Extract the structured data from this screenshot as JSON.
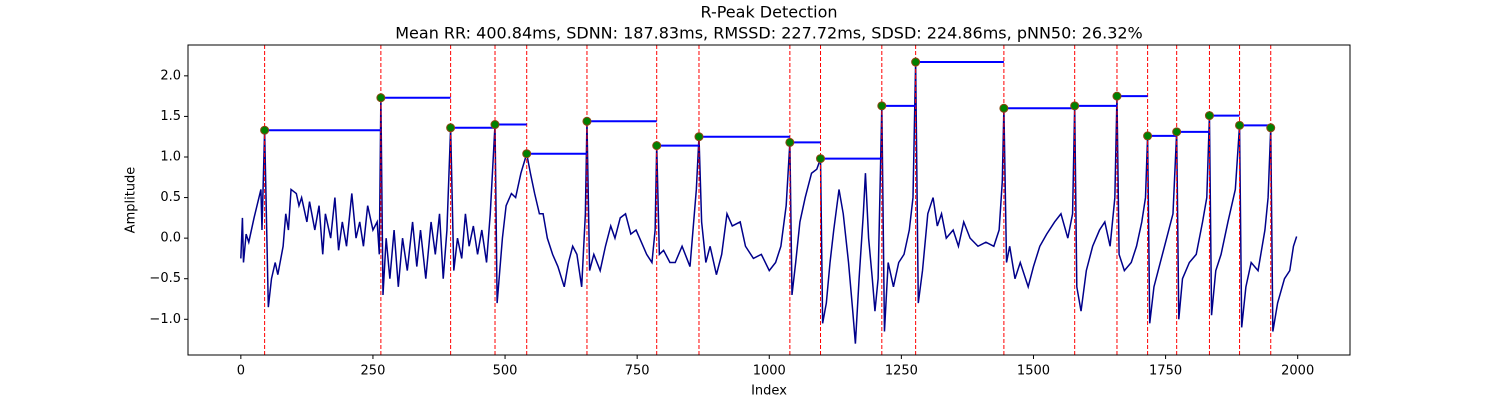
{
  "chart_data": {
    "type": "line",
    "title": "R-Peak Detection",
    "subtitle": "Mean RR: 400.84ms, SDNN: 187.83ms, RMSSD: 227.72ms, SDSD: 224.86ms, pNN50: 26.32%",
    "xlabel": "Index",
    "ylabel": "Amplitude",
    "xlim": [
      -100,
      2099
    ],
    "ylim": [
      -1.44,
      2.38
    ],
    "xticks": [
      0,
      250,
      500,
      750,
      1000,
      1250,
      1500,
      1750,
      2000
    ],
    "yticks": [
      {
        "value": -1.0,
        "label": "−1.0"
      },
      {
        "value": -0.5,
        "label": "−0.5"
      },
      {
        "value": 0.0,
        "label": "0.0"
      },
      {
        "value": 0.5,
        "label": "0.5"
      },
      {
        "value": 1.0,
        "label": "1.0"
      },
      {
        "value": 1.5,
        "label": "1.5"
      },
      {
        "value": 2.0,
        "label": "2.0"
      }
    ],
    "series": [
      {
        "color": "#00008b",
        "x": [
          0,
          3,
          5,
          10,
          15,
          25,
          38,
          40,
          45,
          52,
          58,
          65,
          70,
          80,
          85,
          90,
          95,
          105,
          110,
          115,
          125,
          130,
          140,
          148,
          155,
          160,
          170,
          178,
          185,
          192,
          200,
          210,
          218,
          225,
          232,
          240,
          250,
          258,
          262,
          265,
          269,
          275,
          282,
          290,
          298,
          306,
          315,
          325,
          333,
          340,
          350,
          360,
          368,
          376,
          383,
          390,
          397,
          403,
          410,
          418,
          425,
          432,
          440,
          448,
          456,
          465,
          472,
          481,
          485,
          490,
          495,
          502,
          512,
          520,
          530,
          541,
          548,
          556,
          565,
          572,
          580,
          590,
          600,
          612,
          620,
          628,
          636,
          645,
          652,
          655,
          660,
          668,
          680,
          690,
          700,
          708,
          718,
          728,
          738,
          748,
          758,
          768,
          778,
          784,
          787,
          792,
          800,
          812,
          822,
          835,
          850,
          862,
          867,
          872,
          880,
          888,
          900,
          910,
          920,
          930,
          945,
          955,
          970,
          985,
          1000,
          1012,
          1022,
          1032,
          1039,
          1043,
          1050,
          1058,
          1068,
          1080,
          1090,
          1097,
          1101,
          1108,
          1115,
          1122,
          1132,
          1140,
          1150,
          1158,
          1163,
          1170,
          1178,
          1182,
          1188,
          1195,
          1200,
          1206,
          1213,
          1218,
          1225,
          1235,
          1245,
          1255,
          1265,
          1272,
          1277,
          1282,
          1290,
          1300,
          1310,
          1318,
          1326,
          1335,
          1348,
          1358,
          1368,
          1380,
          1395,
          1410,
          1425,
          1435,
          1441,
          1444,
          1449,
          1455,
          1465,
          1475,
          1490,
          1500,
          1512,
          1525,
          1540,
          1552,
          1565,
          1574,
          1578,
          1582,
          1590,
          1600,
          1612,
          1625,
          1635,
          1645,
          1654,
          1658,
          1662,
          1672,
          1685,
          1695,
          1705,
          1712,
          1716,
          1720,
          1728,
          1740,
          1752,
          1764,
          1771,
          1775,
          1782,
          1795,
          1808,
          1820,
          1828,
          1833,
          1837,
          1845,
          1855,
          1868,
          1882,
          1890,
          1894,
          1902,
          1912,
          1925,
          1938,
          1944,
          1949,
          1953,
          1962,
          1975,
          1985,
          1992,
          1998
        ],
        "values": [
          -0.25,
          0.25,
          -0.3,
          0.05,
          -0.05,
          0.25,
          0.6,
          0.1,
          1.33,
          -0.85,
          -0.5,
          -0.3,
          -0.45,
          -0.1,
          0.3,
          0.1,
          0.6,
          0.55,
          0.4,
          0.5,
          0.2,
          0.45,
          0.1,
          0.4,
          -0.2,
          0.3,
          0.0,
          0.5,
          -0.15,
          0.2,
          -0.1,
          0.55,
          0.0,
          0.2,
          -0.1,
          0.4,
          0.1,
          0.2,
          -0.2,
          1.73,
          -0.7,
          0.0,
          -0.5,
          0.1,
          -0.6,
          0.0,
          -0.4,
          0.2,
          -0.35,
          0.1,
          -0.5,
          0.2,
          -0.2,
          0.3,
          -0.5,
          0.1,
          1.36,
          -0.4,
          0.0,
          -0.25,
          0.3,
          -0.1,
          0.15,
          -0.2,
          0.1,
          -0.3,
          0.3,
          1.4,
          -0.8,
          -0.4,
          0.0,
          0.4,
          0.55,
          0.5,
          0.8,
          1.04,
          0.8,
          0.55,
          0.3,
          0.3,
          0.0,
          -0.2,
          -0.35,
          -0.6,
          -0.3,
          -0.1,
          -0.2,
          -0.6,
          0.3,
          1.44,
          -0.4,
          -0.2,
          -0.4,
          -0.1,
          0.15,
          0.0,
          0.25,
          0.3,
          0.05,
          0.1,
          -0.05,
          -0.2,
          -0.3,
          0.1,
          1.14,
          -0.2,
          -0.15,
          -0.3,
          -0.3,
          -0.1,
          -0.35,
          0.6,
          1.25,
          0.2,
          -0.3,
          -0.1,
          -0.45,
          -0.2,
          0.3,
          0.15,
          0.2,
          -0.1,
          -0.25,
          -0.2,
          -0.4,
          -0.3,
          -0.1,
          0.4,
          1.18,
          -0.7,
          -0.3,
          0.2,
          0.5,
          0.8,
          0.85,
          0.98,
          -1.05,
          -0.8,
          -0.3,
          0.1,
          0.6,
          0.3,
          -0.3,
          -0.9,
          -1.3,
          -0.5,
          0.3,
          0.8,
          0.0,
          -0.5,
          -0.9,
          -0.5,
          1.63,
          -1.15,
          -0.3,
          -0.6,
          -0.3,
          -0.2,
          0.1,
          0.5,
          2.17,
          -0.8,
          -0.4,
          0.3,
          0.5,
          0.15,
          0.3,
          0.0,
          0.1,
          -0.1,
          0.2,
          0.0,
          -0.1,
          -0.05,
          -0.1,
          0.1,
          0.7,
          1.6,
          -0.3,
          -0.1,
          -0.5,
          -0.3,
          -0.6,
          -0.35,
          -0.1,
          0.05,
          0.2,
          0.3,
          0.0,
          0.3,
          1.63,
          -0.6,
          -0.9,
          -0.4,
          -0.1,
          0.1,
          0.2,
          -0.1,
          0.5,
          1.75,
          -0.2,
          -0.4,
          -0.3,
          -0.1,
          0.2,
          0.5,
          1.26,
          -1.05,
          -0.6,
          -0.3,
          0.0,
          0.3,
          1.31,
          -1.0,
          -0.5,
          -0.3,
          -0.2,
          0.2,
          0.5,
          1.51,
          -0.95,
          -0.4,
          -0.2,
          0.2,
          0.6,
          1.39,
          -1.1,
          -0.6,
          -0.3,
          -0.4,
          0.1,
          0.5,
          1.36,
          -1.15,
          -0.8,
          -0.5,
          -0.4,
          -0.1,
          0.02
        ]
      }
    ],
    "peaks": {
      "color": "#008000",
      "line_color": "#0000ff",
      "marker_color": "#ff0000",
      "x": [
        45,
        265,
        397,
        481,
        541,
        655,
        787,
        867,
        1039,
        1097,
        1213,
        1277,
        1444,
        1578,
        1658,
        1716,
        1771,
        1833,
        1890,
        1949
      ],
      "values": [
        1.33,
        1.73,
        1.36,
        1.4,
        1.04,
        1.44,
        1.14,
        1.25,
        1.18,
        0.98,
        1.63,
        2.17,
        1.6,
        1.63,
        1.75,
        1.26,
        1.31,
        1.51,
        1.39,
        1.36
      ]
    }
  }
}
